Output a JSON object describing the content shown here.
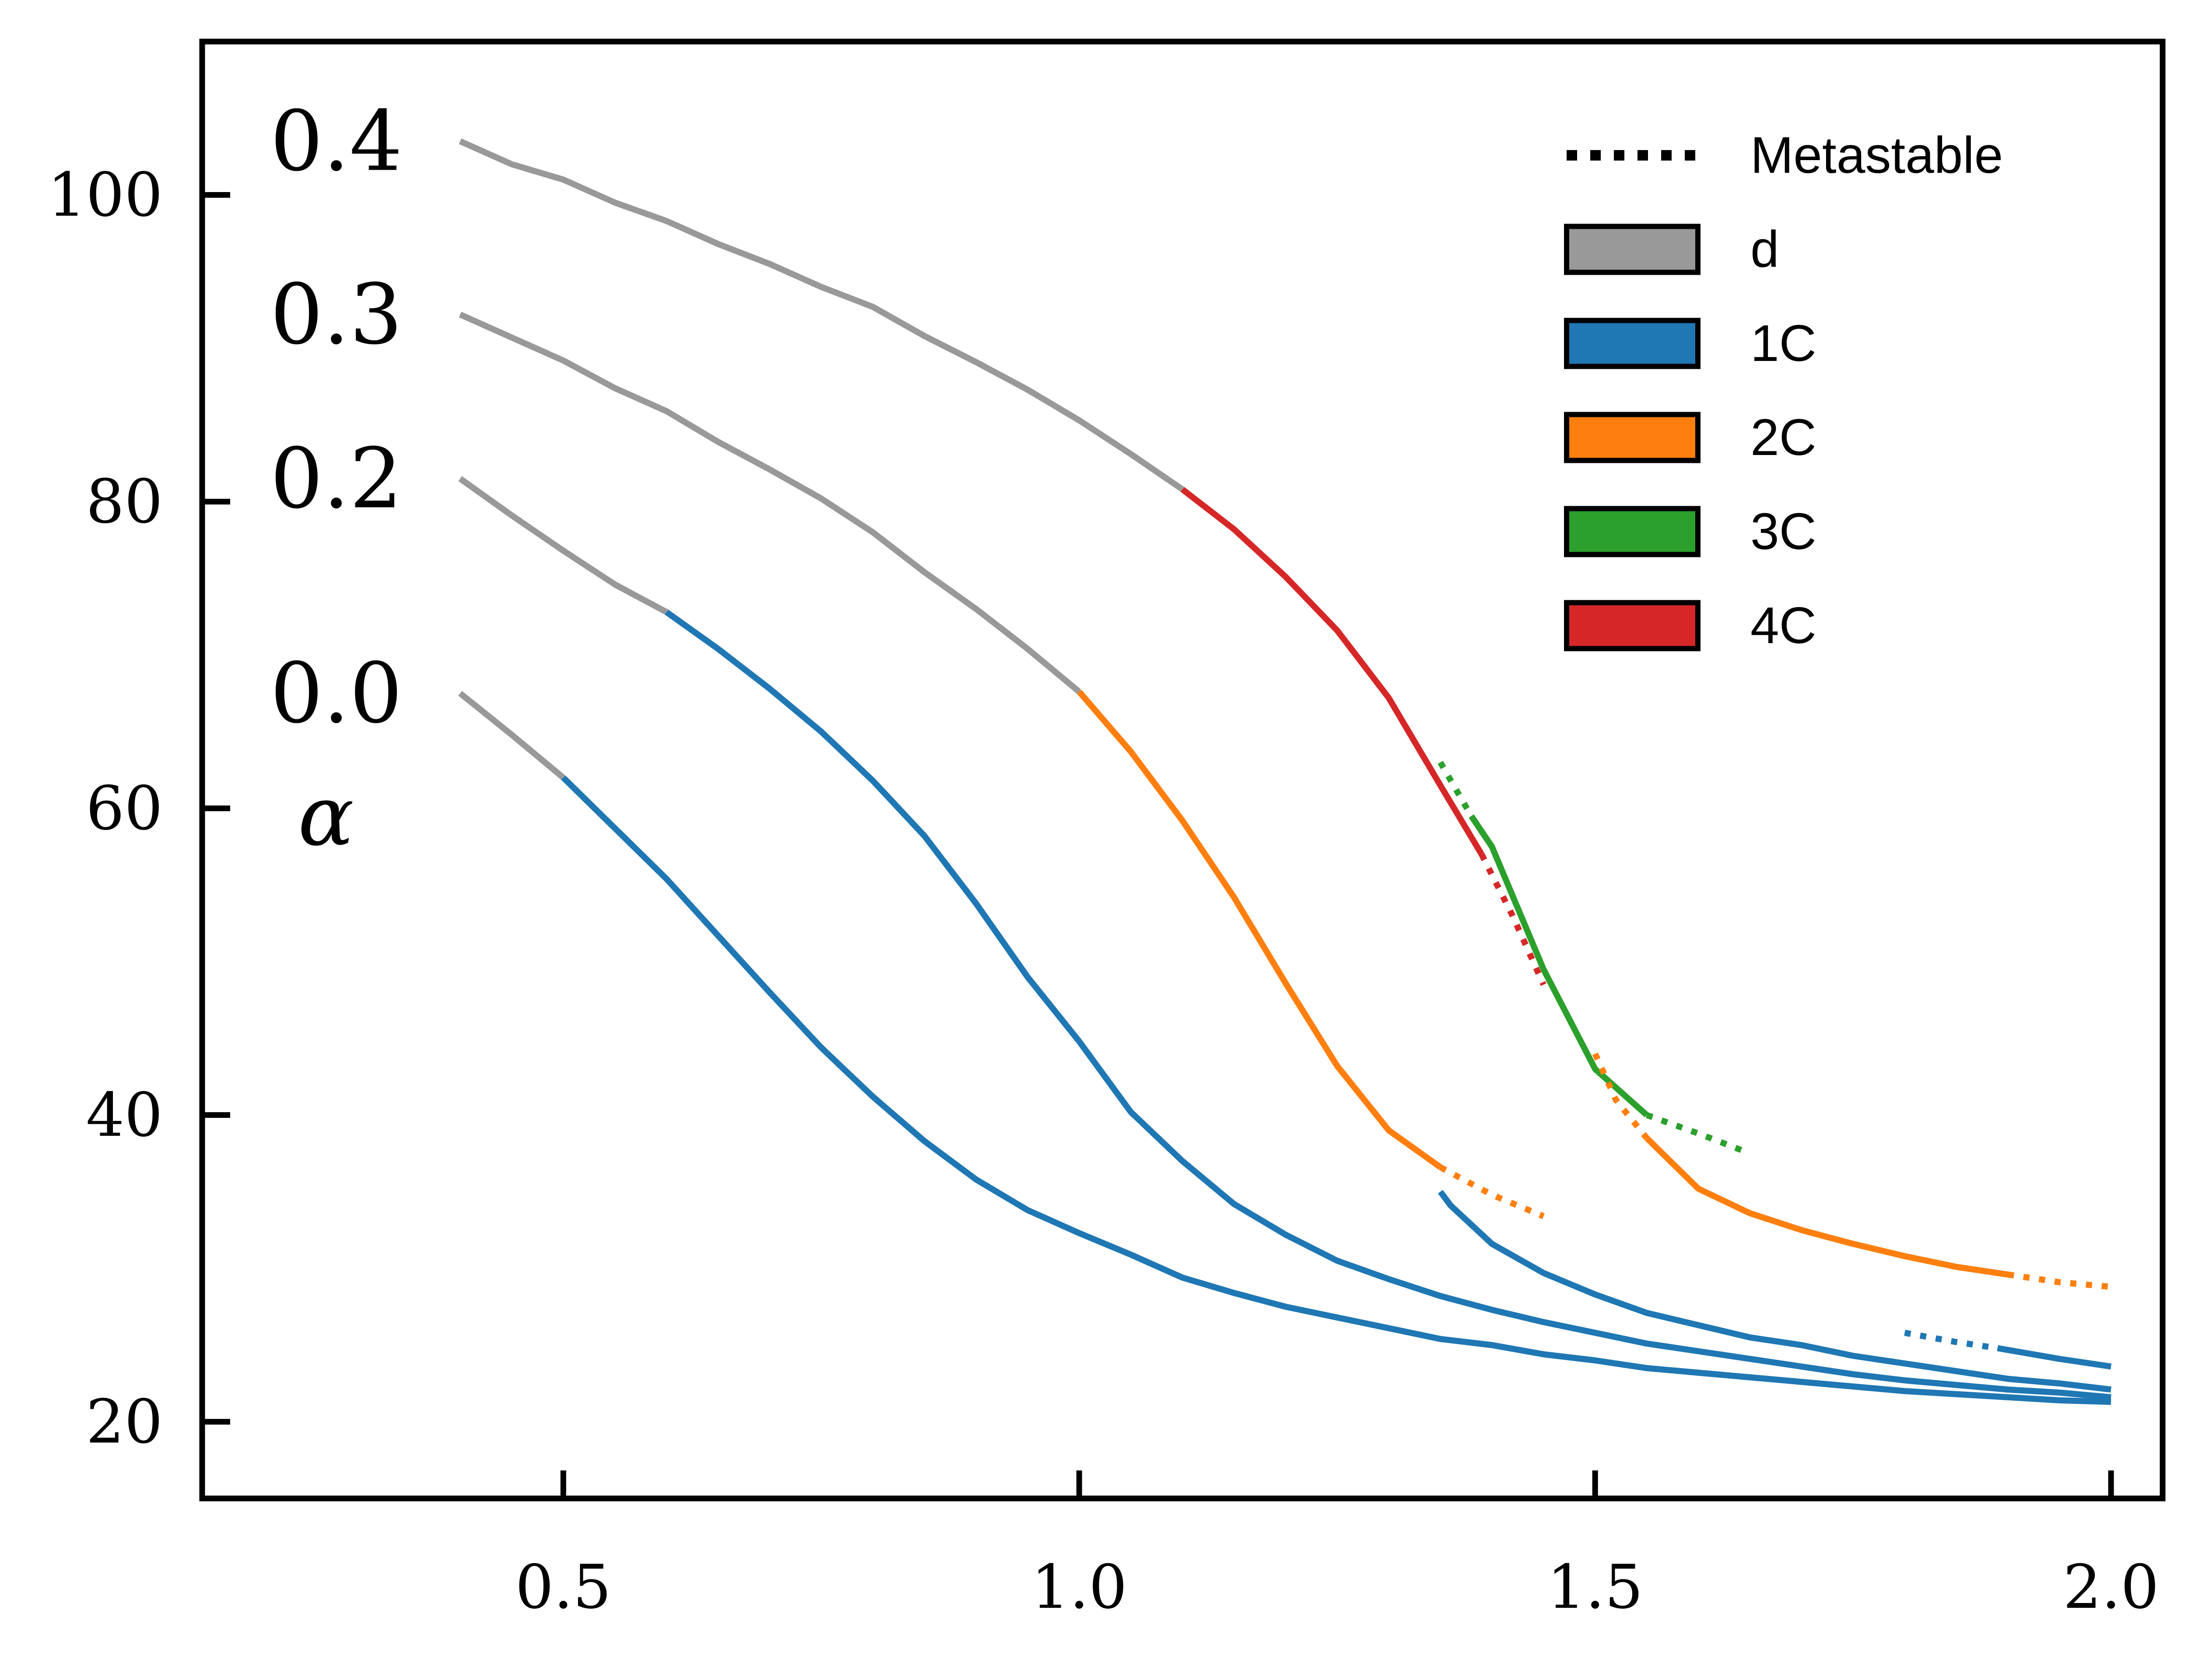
{
  "chart_data": {
    "type": "line",
    "title": "",
    "xlabel": "",
    "ylabel": "",
    "xlim": [
      0.15,
      2.05
    ],
    "ylim": [
      15,
      110
    ],
    "x_ticks": [
      0.5,
      1.0,
      1.5,
      2.0
    ],
    "x_tick_labels": [
      "0.5",
      "1.0",
      "1.5",
      "2.0"
    ],
    "y_ticks": [
      20,
      40,
      60,
      80,
      100
    ],
    "y_tick_labels": [
      "20",
      "40",
      "60",
      "80",
      "100"
    ],
    "grid": false,
    "legend_position": "top-right",
    "legend": [
      {
        "label": "Metastable",
        "style": "dotted",
        "color": "#000000"
      },
      {
        "label": "d",
        "style": "solid",
        "color": "#999999"
      },
      {
        "label": "1C",
        "style": "solid",
        "color": "#1f77b4"
      },
      {
        "label": "2C",
        "style": "solid",
        "color": "#ff7f0e"
      },
      {
        "label": "3C",
        "style": "solid",
        "color": "#2ca02c"
      },
      {
        "label": "4C",
        "style": "solid",
        "color": "#d62728"
      }
    ],
    "curve_labels": [
      {
        "text": "0.4",
        "x": 0.28,
        "y": 103.5
      },
      {
        "text": "0.3",
        "x": 0.28,
        "y": 92.2
      },
      {
        "text": "0.2",
        "x": 0.28,
        "y": 81.5
      },
      {
        "text": "0.0",
        "x": 0.28,
        "y": 67.5
      },
      {
        "text": "α",
        "x": 0.27,
        "y": 59.5
      }
    ],
    "series": [
      {
        "phase": "d",
        "style": "solid",
        "color": "#999999",
        "points": [
          [
            0.4,
            103.5
          ],
          [
            0.45,
            102.0
          ],
          [
            0.5,
            101.0
          ],
          [
            0.55,
            99.5
          ],
          [
            0.6,
            98.3
          ],
          [
            0.65,
            96.8
          ],
          [
            0.7,
            95.5
          ],
          [
            0.75,
            94.0
          ],
          [
            0.8,
            92.7
          ],
          [
            0.85,
            90.8
          ],
          [
            0.9,
            89.1
          ],
          [
            0.95,
            87.3
          ],
          [
            1.0,
            85.3
          ],
          [
            1.05,
            83.1
          ],
          [
            1.1,
            80.8
          ]
        ]
      },
      {
        "phase": "4C",
        "style": "solid",
        "color": "#d62728",
        "points": [
          [
            1.1,
            80.8
          ],
          [
            1.15,
            78.2
          ],
          [
            1.2,
            75.1
          ],
          [
            1.25,
            71.6
          ],
          [
            1.3,
            67.2
          ],
          [
            1.35,
            61.5
          ],
          [
            1.39,
            57.0
          ]
        ]
      },
      {
        "phase": "4C",
        "style": "dotted",
        "color": "#d62728",
        "points": [
          [
            1.39,
            57.0
          ],
          [
            1.42,
            53.0
          ],
          [
            1.45,
            48.5
          ]
        ]
      },
      {
        "phase": "3C",
        "style": "dotted",
        "color": "#2ca02c",
        "points": [
          [
            1.35,
            63.0
          ],
          [
            1.38,
            59.5
          ],
          [
            1.4,
            57.5
          ]
        ]
      },
      {
        "phase": "3C",
        "style": "solid",
        "color": "#2ca02c",
        "points": [
          [
            1.38,
            59.5
          ],
          [
            1.4,
            57.5
          ],
          [
            1.45,
            49.5
          ],
          [
            1.5,
            43.0
          ],
          [
            1.55,
            40.0
          ]
        ]
      },
      {
        "phase": "3C",
        "style": "dotted",
        "color": "#2ca02c",
        "points": [
          [
            1.55,
            40.0
          ],
          [
            1.6,
            38.8
          ],
          [
            1.65,
            37.5
          ]
        ]
      },
      {
        "phase": "2C",
        "style": "dotted",
        "color": "#ff7f0e",
        "points": [
          [
            1.5,
            44.0
          ],
          [
            1.52,
            41.0
          ],
          [
            1.55,
            38.5
          ]
        ]
      },
      {
        "phase": "2C",
        "style": "solid",
        "color": "#ff7f0e",
        "points": [
          [
            1.55,
            38.5
          ],
          [
            1.6,
            35.2
          ],
          [
            1.65,
            33.6
          ],
          [
            1.7,
            32.5
          ],
          [
            1.75,
            31.6
          ],
          [
            1.8,
            30.8
          ],
          [
            1.85,
            30.1
          ],
          [
            1.9,
            29.6
          ]
        ]
      },
      {
        "phase": "2C",
        "style": "dotted",
        "color": "#ff7f0e",
        "points": [
          [
            1.9,
            29.6
          ],
          [
            1.95,
            29.1
          ],
          [
            2.0,
            28.8
          ]
        ]
      },
      {
        "phase": "d",
        "style": "solid",
        "color": "#999999",
        "points": [
          [
            0.4,
            92.2
          ],
          [
            0.45,
            90.7
          ],
          [
            0.5,
            89.2
          ],
          [
            0.55,
            87.4
          ],
          [
            0.6,
            85.9
          ],
          [
            0.65,
            83.9
          ],
          [
            0.7,
            82.1
          ],
          [
            0.75,
            80.2
          ],
          [
            0.8,
            78.0
          ],
          [
            0.85,
            75.4
          ],
          [
            0.9,
            73.0
          ],
          [
            0.95,
            70.4
          ],
          [
            1.0,
            67.6
          ]
        ]
      },
      {
        "phase": "2C",
        "style": "solid",
        "color": "#ff7f0e",
        "points": [
          [
            1.0,
            67.6
          ],
          [
            1.05,
            63.7
          ],
          [
            1.1,
            59.2
          ],
          [
            1.15,
            54.2
          ],
          [
            1.2,
            48.6
          ],
          [
            1.25,
            43.2
          ],
          [
            1.3,
            39.0
          ],
          [
            1.35,
            36.6
          ]
        ]
      },
      {
        "phase": "2C",
        "style": "dotted",
        "color": "#ff7f0e",
        "points": [
          [
            1.35,
            36.6
          ],
          [
            1.4,
            34.8
          ],
          [
            1.45,
            33.4
          ]
        ]
      },
      {
        "phase": "1C",
        "style": "solid",
        "color": "#1f77b4",
        "points": [
          [
            1.35,
            35.0
          ],
          [
            1.36,
            34.1
          ],
          [
            1.4,
            31.6
          ],
          [
            1.45,
            29.7
          ],
          [
            1.5,
            28.3
          ],
          [
            1.55,
            27.1
          ],
          [
            1.6,
            26.3
          ],
          [
            1.65,
            25.5
          ],
          [
            1.7,
            25.0
          ],
          [
            1.75,
            24.3
          ],
          [
            1.8,
            23.8
          ],
          [
            1.85,
            23.3
          ],
          [
            1.9,
            22.8
          ],
          [
            1.95,
            22.5
          ],
          [
            2.0,
            22.1
          ]
        ]
      },
      {
        "phase": "d",
        "style": "solid",
        "color": "#999999",
        "points": [
          [
            0.4,
            81.5
          ],
          [
            0.45,
            79.1
          ],
          [
            0.5,
            76.8
          ],
          [
            0.55,
            74.6
          ],
          [
            0.6,
            72.8
          ]
        ]
      },
      {
        "phase": "1C",
        "style": "solid",
        "color": "#1f77b4",
        "points": [
          [
            0.6,
            72.8
          ],
          [
            0.65,
            70.4
          ],
          [
            0.7,
            67.8
          ],
          [
            0.75,
            65.0
          ],
          [
            0.8,
            61.8
          ],
          [
            0.85,
            58.2
          ],
          [
            0.9,
            53.8
          ],
          [
            0.95,
            49.0
          ],
          [
            1.0,
            44.8
          ],
          [
            1.05,
            40.2
          ],
          [
            1.1,
            37.0
          ],
          [
            1.15,
            34.2
          ],
          [
            1.2,
            32.2
          ],
          [
            1.25,
            30.5
          ],
          [
            1.3,
            29.3
          ],
          [
            1.35,
            28.2
          ],
          [
            1.4,
            27.3
          ],
          [
            1.45,
            26.5
          ],
          [
            1.5,
            25.8
          ],
          [
            1.55,
            25.1
          ],
          [
            1.6,
            24.6
          ],
          [
            1.65,
            24.1
          ],
          [
            1.7,
            23.6
          ],
          [
            1.75,
            23.1
          ],
          [
            1.8,
            22.7
          ],
          [
            1.85,
            22.4
          ],
          [
            1.9,
            22.1
          ],
          [
            1.95,
            21.9
          ],
          [
            2.0,
            21.6
          ]
        ]
      },
      {
        "phase": "1C",
        "style": "dotted",
        "color": "#1f77b4",
        "points": [
          [
            1.8,
            25.8
          ],
          [
            1.85,
            25.2
          ],
          [
            1.89,
            24.8
          ]
        ]
      },
      {
        "phase": "1C",
        "style": "solid",
        "color": "#1f77b4",
        "points": [
          [
            1.89,
            24.8
          ],
          [
            1.95,
            24.1
          ],
          [
            2.0,
            23.6
          ]
        ]
      },
      {
        "phase": "d",
        "style": "solid",
        "color": "#999999",
        "points": [
          [
            0.4,
            67.5
          ],
          [
            0.45,
            64.8
          ],
          [
            0.5,
            62.0
          ]
        ]
      },
      {
        "phase": "1C",
        "style": "solid",
        "color": "#1f77b4",
        "points": [
          [
            0.5,
            62.0
          ],
          [
            0.55,
            58.7
          ],
          [
            0.6,
            55.4
          ],
          [
            0.65,
            51.7
          ],
          [
            0.7,
            48.0
          ],
          [
            0.75,
            44.4
          ],
          [
            0.8,
            41.2
          ],
          [
            0.85,
            38.3
          ],
          [
            0.9,
            35.8
          ],
          [
            0.95,
            33.8
          ],
          [
            1.0,
            32.3
          ],
          [
            1.05,
            30.9
          ],
          [
            1.1,
            29.4
          ],
          [
            1.15,
            28.4
          ],
          [
            1.2,
            27.5
          ],
          [
            1.25,
            26.8
          ],
          [
            1.3,
            26.1
          ],
          [
            1.35,
            25.4
          ],
          [
            1.4,
            25.0
          ],
          [
            1.45,
            24.4
          ],
          [
            1.5,
            24.0
          ],
          [
            1.55,
            23.5
          ],
          [
            1.6,
            23.2
          ],
          [
            1.65,
            22.9
          ],
          [
            1.7,
            22.6
          ],
          [
            1.75,
            22.3
          ],
          [
            1.8,
            22.0
          ],
          [
            1.85,
            21.8
          ],
          [
            1.9,
            21.6
          ],
          [
            1.95,
            21.4
          ],
          [
            2.0,
            21.3
          ]
        ]
      }
    ]
  }
}
